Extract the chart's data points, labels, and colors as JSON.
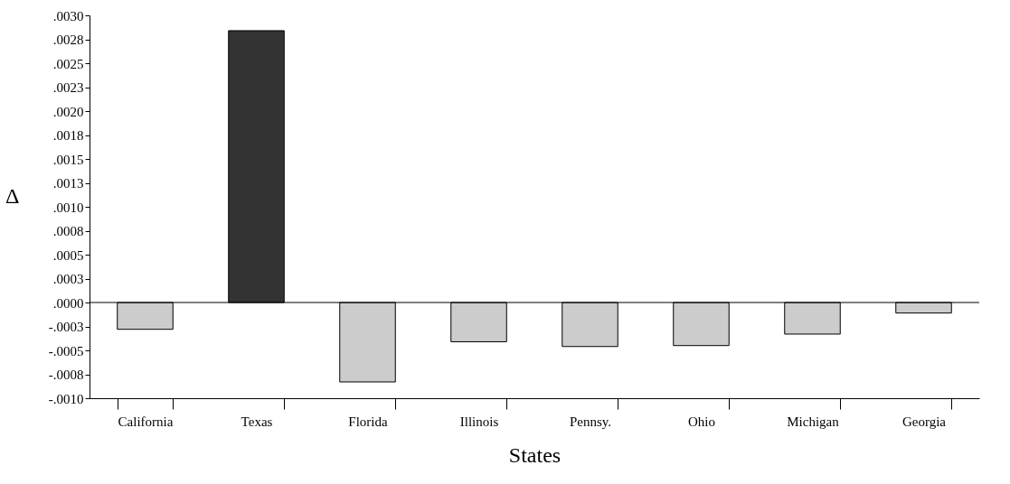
{
  "chart_data": {
    "type": "bar",
    "xlabel": "States",
    "ylabel": "Δ",
    "categories": [
      "California",
      "Texas",
      "Florida",
      "Illinois",
      "Pennsy.",
      "Ohio",
      "Michigan",
      "Georgia"
    ],
    "values": [
      -0.00028,
      0.00284,
      -0.00083,
      -0.00041,
      -0.00046,
      -0.00045,
      -0.00033,
      -0.00011
    ],
    "colors": [
      "#cccccc",
      "#333333",
      "#cccccc",
      "#cccccc",
      "#cccccc",
      "#cccccc",
      "#cccccc",
      "#cccccc"
    ],
    "ylim": [
      -0.001,
      0.003
    ],
    "yticks": [
      {
        "value": -0.001,
        "label": "-.0010"
      },
      {
        "value": -0.00075,
        "label": "-.0008"
      },
      {
        "value": -0.0005,
        "label": "-.0005"
      },
      {
        "value": -0.00025,
        "label": "-.0003"
      },
      {
        "value": 0,
        "label": ".0000"
      },
      {
        "value": 0.00025,
        "label": ".0003"
      },
      {
        "value": 0.0005,
        "label": ".0005"
      },
      {
        "value": 0.00075,
        "label": ".0008"
      },
      {
        "value": 0.001,
        "label": ".0010"
      },
      {
        "value": 0.00125,
        "label": ".0013"
      },
      {
        "value": 0.0015,
        "label": ".0015"
      },
      {
        "value": 0.00175,
        "label": ".0018"
      },
      {
        "value": 0.002,
        "label": ".0020"
      },
      {
        "value": 0.00225,
        "label": ".0023"
      },
      {
        "value": 0.0025,
        "label": ".0025"
      },
      {
        "value": 0.00275,
        "label": ".0028"
      },
      {
        "value": 0.003,
        "label": ".0030"
      }
    ],
    "ref_lines": [
      {
        "axis": "y",
        "value": 0
      }
    ],
    "grid": false
  }
}
